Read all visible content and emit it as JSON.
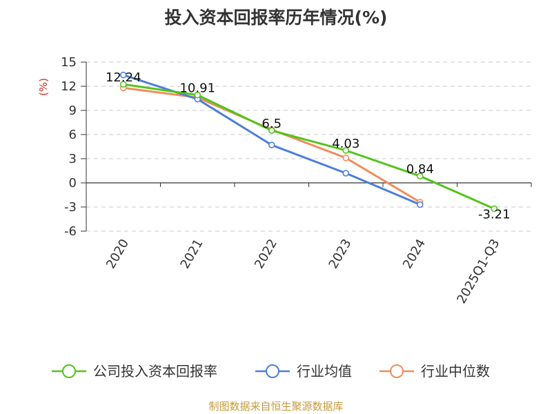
{
  "title": "投入资本回报率历年情况(%)",
  "source": "制图数据来自恒生聚源数据库",
  "chart_data": {
    "type": "line",
    "title": "投入资本回报率历年情况(%)",
    "ylabel": "(%)",
    "xlabel": "",
    "categories": [
      "2020",
      "2021",
      "2022",
      "2023",
      "2024",
      "2025Q1-Q3"
    ],
    "ylim": [
      -6,
      15
    ],
    "yticks": [
      15,
      12,
      9,
      6,
      3,
      0,
      -3,
      -6
    ],
    "ytick_labels": [
      "15",
      "12",
      "9",
      "6",
      "3",
      "0",
      "-3",
      "-6"
    ],
    "grid": true,
    "legend_position": "bottom",
    "series": [
      {
        "name": "公司投入资本回报率",
        "color": "#52c41a",
        "values": [
          12.24,
          10.91,
          6.5,
          4.03,
          0.84,
          -3.21
        ],
        "labels": [
          "12.24",
          "10.91",
          "6.5",
          "4.03",
          "0.84",
          "-3.21"
        ]
      },
      {
        "name": "行业均值",
        "color": "#4a7fdc",
        "values": [
          13.4,
          10.4,
          4.7,
          1.2,
          -2.7,
          null
        ]
      },
      {
        "name": "行业中位数",
        "color": "#f28c5a",
        "values": [
          11.8,
          10.6,
          6.6,
          3.1,
          -2.4,
          null
        ]
      }
    ]
  }
}
